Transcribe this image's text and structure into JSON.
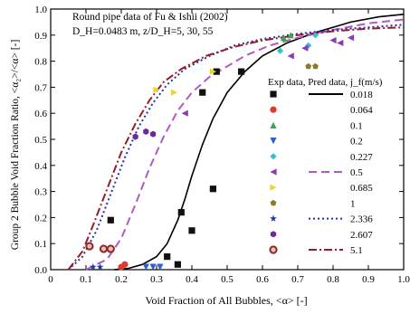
{
  "chart_data": {
    "type": "scatter",
    "title": "",
    "annotation": {
      "line1": "Round pipe data of Fu & Ishii (2002)",
      "line2": "D_H=0.0483 m, z/D_H=5, 30, 55"
    },
    "xlabel": "Void Fraction of All Bubbles,  <α>  [-]",
    "ylabel": "Group 2 Bubble Void Fraction Ratio,  <α₂>/<α>  [-]",
    "xlim": [
      0,
      1.0
    ],
    "ylim": [
      0,
      1.0
    ],
    "xticks": [
      "0",
      "0.1",
      "0.2",
      "0.3",
      "0.4",
      "0.5",
      "0.6",
      "0.7",
      "0.8",
      "0.9",
      "1.0"
    ],
    "yticks": [
      "0.0",
      "0.1",
      "0.2",
      "0.3",
      "0.4",
      "0.5",
      "0.6",
      "0.7",
      "0.8",
      "0.9",
      "1.0"
    ],
    "legend": {
      "header": "Exp data, Pred data,  j_f(m/s)",
      "placement": "right"
    },
    "series": [
      {
        "name": "0.018",
        "marker": "square",
        "color": "#111111",
        "line": "solid",
        "line_color": "#000000",
        "points": [
          [
            0.17,
            0.19
          ],
          [
            0.33,
            0.05
          ],
          [
            0.37,
            0.22
          ],
          [
            0.4,
            0.15
          ],
          [
            0.43,
            0.68
          ],
          [
            0.46,
            0.31
          ],
          [
            0.47,
            0.76
          ],
          [
            0.54,
            0.76
          ],
          [
            0.36,
            0.02
          ]
        ]
      },
      {
        "name": "0.064",
        "marker": "circle",
        "color": "#e03a2f",
        "line": "none",
        "points": [
          [
            0.2,
            0.01
          ],
          [
            0.21,
            0.02
          ]
        ]
      },
      {
        "name": "0.1",
        "marker": "triangle-up",
        "color": "#3aa84a",
        "line": "none",
        "points": [
          [
            0.66,
            0.89
          ],
          [
            0.68,
            0.9
          ]
        ]
      },
      {
        "name": "0.2",
        "marker": "triangle-down",
        "color": "#2f5fd0",
        "line": "none",
        "points": [
          [
            0.27,
            0.01
          ],
          [
            0.29,
            0.01
          ],
          [
            0.31,
            0.01
          ]
        ]
      },
      {
        "name": "0.227",
        "marker": "diamond",
        "color": "#2fc1d6",
        "line": "none",
        "points": [
          [
            0.65,
            0.84
          ],
          [
            0.73,
            0.86
          ],
          [
            0.75,
            0.9
          ]
        ]
      },
      {
        "name": "0.5",
        "marker": "triangle-left",
        "color": "#8a39b8",
        "line": "dashed",
        "line_color": "#b05ac8",
        "points": [
          [
            0.38,
            0.6
          ],
          [
            0.68,
            0.82
          ],
          [
            0.72,
            0.85
          ],
          [
            0.8,
            0.88
          ],
          [
            0.82,
            0.87
          ],
          [
            0.85,
            0.89
          ]
        ]
      },
      {
        "name": "0.685",
        "marker": "triangle-right",
        "color": "#e6d72a",
        "line": "none",
        "points": [
          [
            0.3,
            0.69
          ],
          [
            0.35,
            0.68
          ],
          [
            0.46,
            0.76
          ]
        ]
      },
      {
        "name": "1",
        "marker": "pentagon",
        "color": "#8b7a2a",
        "line": "none",
        "points": [
          [
            0.73,
            0.78
          ],
          [
            0.75,
            0.78
          ]
        ]
      },
      {
        "name": "2.336",
        "marker": "star",
        "color": "#203a9a",
        "line": "dotted",
        "line_color": "#2033a8",
        "points": [
          [
            0.12,
            0.01
          ],
          [
            0.14,
            0.01
          ]
        ]
      },
      {
        "name": "2.607",
        "marker": "hexagon",
        "color": "#6a2a9a",
        "line": "none",
        "points": [
          [
            0.24,
            0.51
          ],
          [
            0.27,
            0.53
          ],
          [
            0.29,
            0.52
          ]
        ]
      },
      {
        "name": "5.1",
        "marker": "ring",
        "color": "#8a2a2a",
        "line": "dashdot",
        "line_color": "#9a1a2a",
        "points": [
          [
            0.11,
            0.09
          ],
          [
            0.15,
            0.08
          ],
          [
            0.17,
            0.08
          ]
        ]
      }
    ],
    "curves": {
      "0.018": [
        [
          0.18,
          0.0
        ],
        [
          0.22,
          0.005
        ],
        [
          0.26,
          0.02
        ],
        [
          0.3,
          0.05
        ],
        [
          0.33,
          0.1
        ],
        [
          0.36,
          0.19
        ],
        [
          0.38,
          0.27
        ],
        [
          0.4,
          0.36
        ],
        [
          0.43,
          0.48
        ],
        [
          0.46,
          0.58
        ],
        [
          0.5,
          0.68
        ],
        [
          0.55,
          0.76
        ],
        [
          0.6,
          0.82
        ],
        [
          0.67,
          0.87
        ],
        [
          0.75,
          0.91
        ],
        [
          0.85,
          0.95
        ],
        [
          0.93,
          0.97
        ],
        [
          1.0,
          0.98
        ]
      ],
      "0.5": [
        [
          0.1,
          0.0
        ],
        [
          0.16,
          0.04
        ],
        [
          0.2,
          0.12
        ],
        [
          0.24,
          0.25
        ],
        [
          0.28,
          0.39
        ],
        [
          0.32,
          0.51
        ],
        [
          0.36,
          0.61
        ],
        [
          0.4,
          0.68
        ],
        [
          0.45,
          0.74
        ],
        [
          0.5,
          0.78
        ],
        [
          0.55,
          0.82
        ],
        [
          0.62,
          0.86
        ],
        [
          0.7,
          0.89
        ],
        [
          0.8,
          0.92
        ],
        [
          0.9,
          0.945
        ],
        [
          1.0,
          0.96
        ]
      ],
      "2.336": [
        [
          0.05,
          0.0
        ],
        [
          0.09,
          0.05
        ],
        [
          0.13,
          0.15
        ],
        [
          0.17,
          0.29
        ],
        [
          0.21,
          0.43
        ],
        [
          0.25,
          0.55
        ],
        [
          0.29,
          0.64
        ],
        [
          0.33,
          0.71
        ],
        [
          0.38,
          0.77
        ],
        [
          0.45,
          0.82
        ],
        [
          0.52,
          0.86
        ],
        [
          0.6,
          0.885
        ],
        [
          0.7,
          0.905
        ],
        [
          0.8,
          0.92
        ],
        [
          0.9,
          0.93
        ],
        [
          1.0,
          0.94
        ]
      ],
      "5.1": [
        [
          0.05,
          0.0
        ],
        [
          0.09,
          0.07
        ],
        [
          0.12,
          0.17
        ],
        [
          0.16,
          0.31
        ],
        [
          0.2,
          0.45
        ],
        [
          0.24,
          0.56
        ],
        [
          0.28,
          0.65
        ],
        [
          0.32,
          0.72
        ],
        [
          0.37,
          0.77
        ],
        [
          0.44,
          0.82
        ],
        [
          0.52,
          0.855
        ],
        [
          0.6,
          0.88
        ],
        [
          0.7,
          0.9
        ],
        [
          0.8,
          0.915
        ],
        [
          0.9,
          0.925
        ],
        [
          1.0,
          0.93
        ]
      ]
    },
    "grid": false
  }
}
